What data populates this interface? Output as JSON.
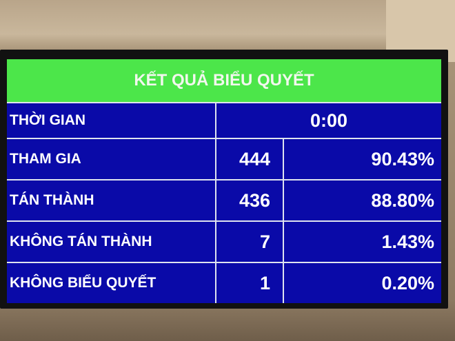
{
  "title": "KẾT QUẢ BIỂU QUYẾT",
  "time": {
    "label": "THỜI GIAN",
    "value": "0:00"
  },
  "rows": [
    {
      "label": "THAM GIA",
      "count": "444",
      "percent": "90.43%"
    },
    {
      "label": "TÁN THÀNH",
      "count": "436",
      "percent": "88.80%"
    },
    {
      "label": "KHÔNG TÁN THÀNH",
      "count": "7",
      "percent": "1.43%"
    },
    {
      "label": "KHÔNG BIỂU QUYẾT",
      "count": "1",
      "percent": "0.20%"
    }
  ],
  "colors": {
    "header": "#4ce64a",
    "body": "#0a0aa8"
  }
}
